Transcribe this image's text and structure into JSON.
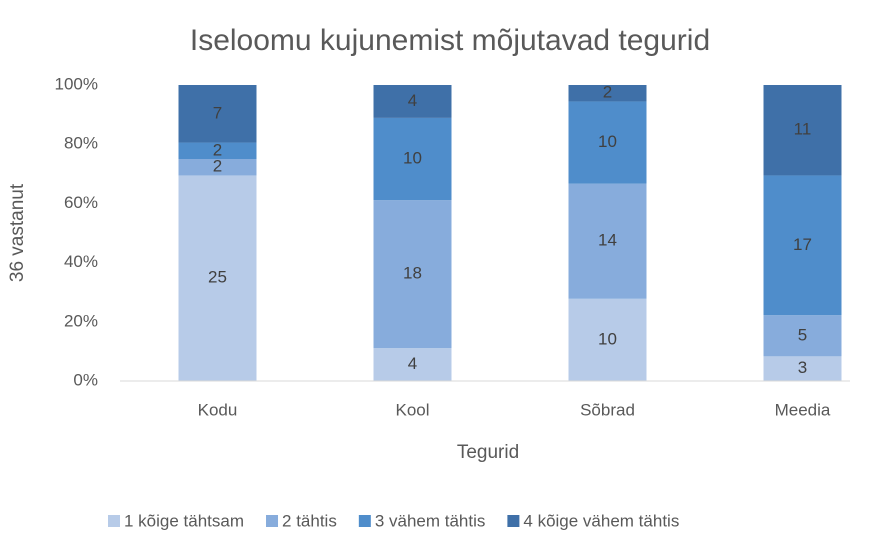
{
  "chart_data": {
    "type": "bar",
    "stacking": "percent",
    "title": "Iseloomu kujunemist mõjutavad tegurid",
    "x_label": "Tegurid",
    "y_label": "36 vastanut",
    "categories": [
      "Kodu",
      "Kool",
      "Sõbrad",
      "Meedia"
    ],
    "series": [
      {
        "name": "1 kõige tähtsam",
        "color": "#b7cbe8",
        "values": [
          25,
          4,
          10,
          3
        ]
      },
      {
        "name": "2 tähtis",
        "color": "#87acdc",
        "values": [
          2,
          18,
          14,
          5
        ]
      },
      {
        "name": "3 vähem tähtis",
        "color": "#4f8dcb",
        "values": [
          2,
          10,
          10,
          17
        ]
      },
      {
        "name": "4 kõige vähem tähtis",
        "color": "#3f70a8",
        "values": [
          7,
          4,
          2,
          11
        ]
      }
    ],
    "ylim": [
      0,
      100
    ],
    "yticks": [
      {
        "value": 0,
        "label": "0%"
      },
      {
        "value": 20,
        "label": "20%"
      },
      {
        "value": 40,
        "label": "40%"
      },
      {
        "value": 60,
        "label": "60%"
      },
      {
        "value": 80,
        "label": "80%"
      },
      {
        "value": 100,
        "label": "100%"
      }
    ],
    "grid": false,
    "legend": "bottom"
  }
}
